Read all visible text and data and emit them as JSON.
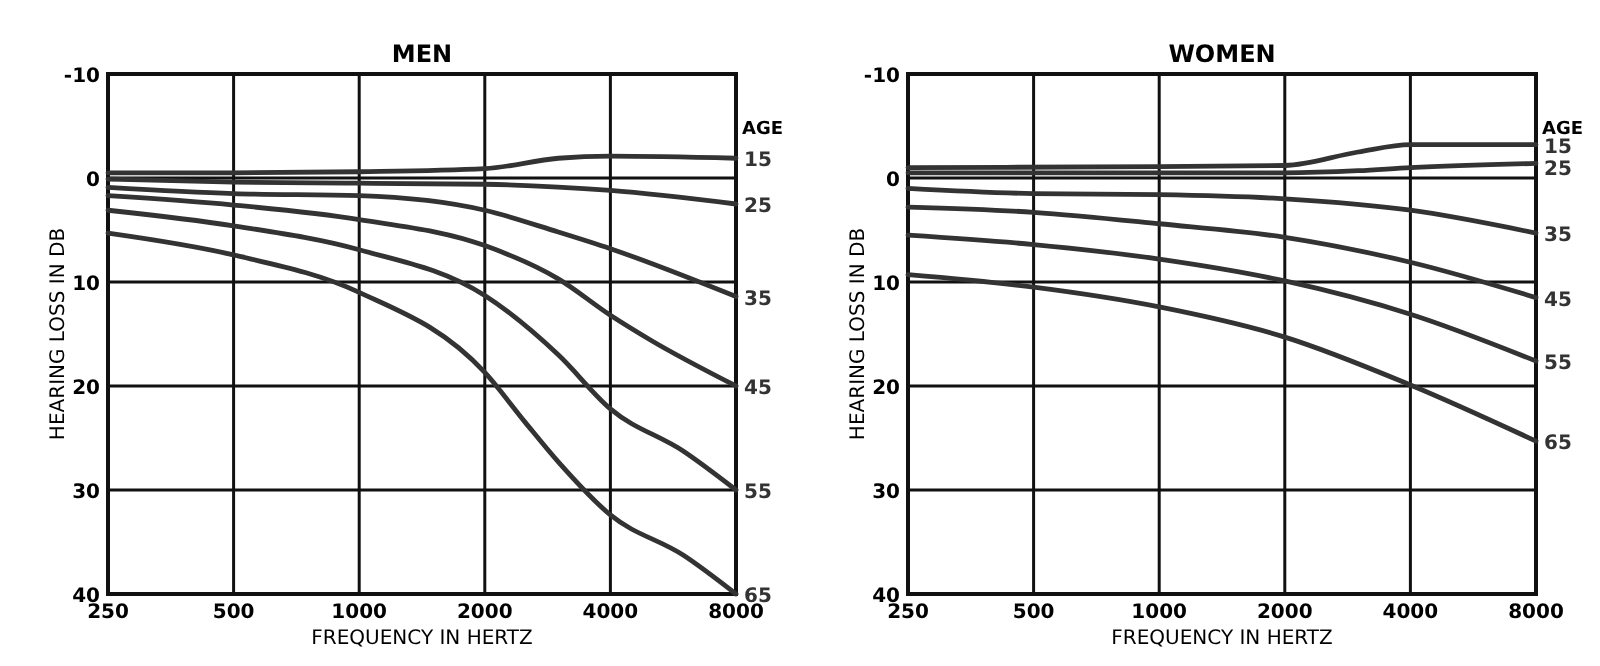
{
  "chart_data": [
    {
      "type": "line",
      "title": "MEN",
      "xlabel": "FREQUENCY IN HERTZ",
      "ylabel": "HEARING LOSS IN DB",
      "legend_title": "AGE",
      "log": "x",
      "grid": true,
      "line_style": "solid",
      "marker": "none",
      "xlim": [
        250,
        8000
      ],
      "xticks": [
        250,
        500,
        1000,
        2000,
        4000,
        8000
      ],
      "ylim": [
        40,
        -10
      ],
      "yticks": [
        -10,
        0,
        10,
        20,
        30,
        40
      ],
      "series": [
        {
          "name": "15",
          "color": "#333333",
          "x": [
            250,
            500,
            1000,
            2000,
            3000,
            4000,
            8000
          ],
          "values": [
            -0.5,
            -0.5,
            -0.6,
            -0.9,
            -1.9,
            -2.1,
            -1.9
          ]
        },
        {
          "name": "25",
          "color": "#333333",
          "x": [
            250,
            500,
            1000,
            2000,
            4000,
            8000
          ],
          "values": [
            0.1,
            0.4,
            0.5,
            0.6,
            1.2,
            2.5
          ]
        },
        {
          "name": "35",
          "color": "#333333",
          "x": [
            250,
            500,
            1000,
            2000,
            3000,
            4000,
            8000
          ],
          "values": [
            0.9,
            1.5,
            1.7,
            3.1,
            5.2,
            6.8,
            11.4
          ]
        },
        {
          "name": "45",
          "color": "#333333",
          "x": [
            250,
            500,
            1000,
            2000,
            3000,
            4000,
            5000,
            8000
          ],
          "values": [
            1.7,
            2.6,
            4.0,
            6.5,
            9.7,
            13.2,
            15.6,
            20
          ]
        },
        {
          "name": "55",
          "color": "#333333",
          "x": [
            250,
            500,
            1000,
            2000,
            3000,
            4000,
            6000,
            8000
          ],
          "values": [
            3.1,
            4.6,
            6.9,
            11.3,
            17,
            22.2,
            26.3,
            30
          ]
        },
        {
          "name": "65",
          "color": "#333333",
          "x": [
            250,
            500,
            1000,
            2000,
            2500,
            3000,
            4000,
            6000,
            8000
          ],
          "values": [
            5.3,
            7.4,
            11,
            18.7,
            23.5,
            27.3,
            32.4,
            36.3,
            40
          ]
        }
      ]
    },
    {
      "type": "line",
      "title": "WOMEN",
      "xlabel": "FREQUENCY IN HERTZ",
      "ylabel": "HEARING LOSS IN DB",
      "legend_title": "AGE",
      "log": "x",
      "grid": true,
      "line_style": "solid",
      "marker": "none",
      "xlim": [
        250,
        8000
      ],
      "xticks": [
        250,
        500,
        1000,
        2000,
        4000,
        8000
      ],
      "ylim": [
        40,
        -10
      ],
      "yticks": [
        -10,
        0,
        10,
        20,
        30,
        40
      ],
      "series": [
        {
          "name": "15",
          "color": "#333333",
          "x": [
            250,
            1000,
            2000,
            3000,
            4000,
            8000
          ],
          "values": [
            -1,
            -1.1,
            -1.2,
            -2.5,
            -3.2,
            -3.2
          ]
        },
        {
          "name": "25",
          "color": "#333333",
          "x": [
            250,
            1000,
            2000,
            3000,
            4000,
            8000
          ],
          "values": [
            -0.5,
            -0.5,
            -0.5,
            -0.7,
            -1,
            -1.4
          ]
        },
        {
          "name": "35",
          "color": "#333333",
          "x": [
            250,
            500,
            1000,
            2000,
            4000,
            8000
          ],
          "values": [
            1,
            1.5,
            1.6,
            2,
            3.1,
            5.3
          ]
        },
        {
          "name": "45",
          "color": "#333333",
          "x": [
            250,
            500,
            1000,
            2000,
            4000,
            8000
          ],
          "values": [
            2.8,
            3.3,
            4.4,
            5.7,
            8.1,
            11.5
          ]
        },
        {
          "name": "55",
          "color": "#333333",
          "x": [
            250,
            500,
            1000,
            2000,
            4000,
            8000
          ],
          "values": [
            5.5,
            6.4,
            7.8,
            9.9,
            13.1,
            17.6
          ]
        },
        {
          "name": "65",
          "color": "#333333",
          "x": [
            250,
            500,
            1000,
            2000,
            4000,
            8000
          ],
          "values": [
            9.3,
            10.5,
            12.4,
            15.3,
            19.9,
            25.3
          ]
        }
      ]
    }
  ]
}
